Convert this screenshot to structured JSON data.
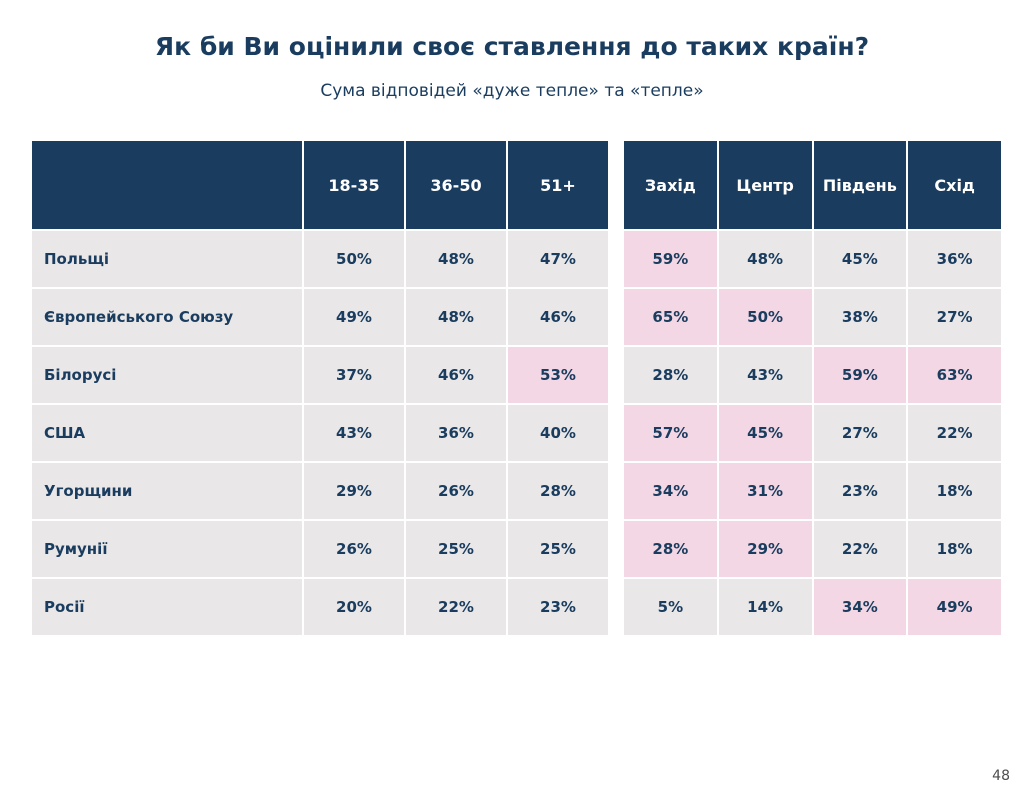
{
  "slide": {
    "title": "Як би Ви оцінили своє ставлення до таких країн?",
    "subtitle": "Сума відповідей «дуже тепле» та «тепле»",
    "page_number": "48"
  },
  "colors": {
    "header_bg": "#1a3c5e",
    "header_text": "#ffffff",
    "cell_bg": "#e9e7e7",
    "highlight_bg": "#f3d7e4",
    "accent_text": "#1a3c5e"
  },
  "chart_data": {
    "type": "table",
    "title": "Як би Ви оцінили своє ставлення до таких країн?",
    "subtitle": "Сума відповідей «дуже тепле» та «тепле»",
    "tables": [
      {
        "name": "age-groups",
        "columns": [
          "18-35",
          "36-50",
          "51+"
        ],
        "rows": [
          {
            "label": "Польщі",
            "values": [
              "50%",
              "48%",
              "47%"
            ],
            "highlight": [
              false,
              false,
              false
            ]
          },
          {
            "label": "Європейського Союзу",
            "values": [
              "49%",
              "48%",
              "46%"
            ],
            "highlight": [
              false,
              false,
              false
            ]
          },
          {
            "label": "Білорусі",
            "values": [
              "37%",
              "46%",
              "53%"
            ],
            "highlight": [
              false,
              false,
              true
            ]
          },
          {
            "label": "США",
            "values": [
              "43%",
              "36%",
              "40%"
            ],
            "highlight": [
              false,
              false,
              false
            ]
          },
          {
            "label": "Угорщини",
            "values": [
              "29%",
              "26%",
              "28%"
            ],
            "highlight": [
              false,
              false,
              false
            ]
          },
          {
            "label": "Румунії",
            "values": [
              "26%",
              "25%",
              "25%"
            ],
            "highlight": [
              false,
              false,
              false
            ]
          },
          {
            "label": "Росії",
            "values": [
              "20%",
              "22%",
              "23%"
            ],
            "highlight": [
              false,
              false,
              false
            ]
          }
        ]
      },
      {
        "name": "regions",
        "columns": [
          "Захід",
          "Центр",
          "Південь",
          "Схід"
        ],
        "rows": [
          {
            "label": "Польщі",
            "values": [
              "59%",
              "48%",
              "45%",
              "36%"
            ],
            "highlight": [
              true,
              false,
              false,
              false
            ]
          },
          {
            "label": "Європейського Союзу",
            "values": [
              "65%",
              "50%",
              "38%",
              "27%"
            ],
            "highlight": [
              true,
              true,
              false,
              false
            ]
          },
          {
            "label": "Білорусі",
            "values": [
              "28%",
              "43%",
              "59%",
              "63%"
            ],
            "highlight": [
              false,
              false,
              true,
              true
            ]
          },
          {
            "label": "США",
            "values": [
              "57%",
              "45%",
              "27%",
              "22%"
            ],
            "highlight": [
              true,
              true,
              false,
              false
            ]
          },
          {
            "label": "Угорщини",
            "values": [
              "34%",
              "31%",
              "23%",
              "18%"
            ],
            "highlight": [
              true,
              true,
              false,
              false
            ]
          },
          {
            "label": "Румунії",
            "values": [
              "28%",
              "29%",
              "22%",
              "18%"
            ],
            "highlight": [
              true,
              true,
              false,
              false
            ]
          },
          {
            "label": "Росії",
            "values": [
              "5%",
              "14%",
              "34%",
              "49%"
            ],
            "highlight": [
              false,
              false,
              true,
              true
            ]
          }
        ]
      }
    ]
  }
}
